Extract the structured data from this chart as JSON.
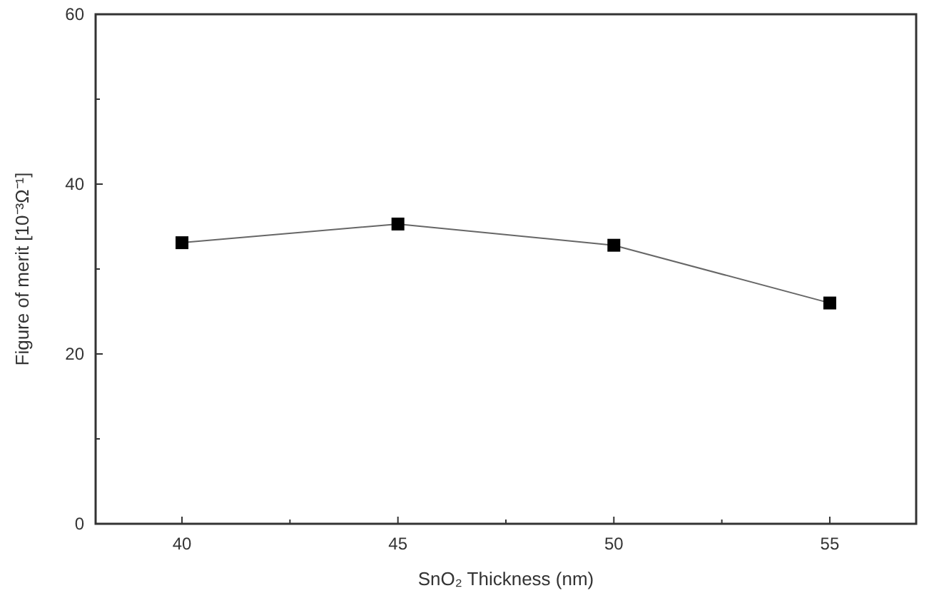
{
  "chart_data": {
    "type": "line",
    "xlabel": "SnO₂ Thickness (nm)",
    "ylabel": "Figure of merit [10⁻³Ω⁻¹]",
    "x": [
      40,
      45,
      50,
      55
    ],
    "series": [
      {
        "color": "#000000",
        "values": [
          33.1,
          35.3,
          32.8,
          26.0
        ]
      }
    ],
    "xlim": [
      38,
      57
    ],
    "xticks": [
      40,
      {
        "value": 42.5,
        "label": null
      },
      45,
      {
        "value": 47.5,
        "label": null
      },
      50,
      {
        "value": 52.5,
        "label": null
      },
      55
    ],
    "ylim": [
      0,
      60
    ],
    "yticks": [
      0,
      {
        "value": 10,
        "label": null
      },
      20,
      {
        "value": 30,
        "label": null
      },
      40,
      {
        "value": 50,
        "label": null
      },
      60
    ],
    "marker": "square",
    "line_style": "solid",
    "grid": false
  }
}
